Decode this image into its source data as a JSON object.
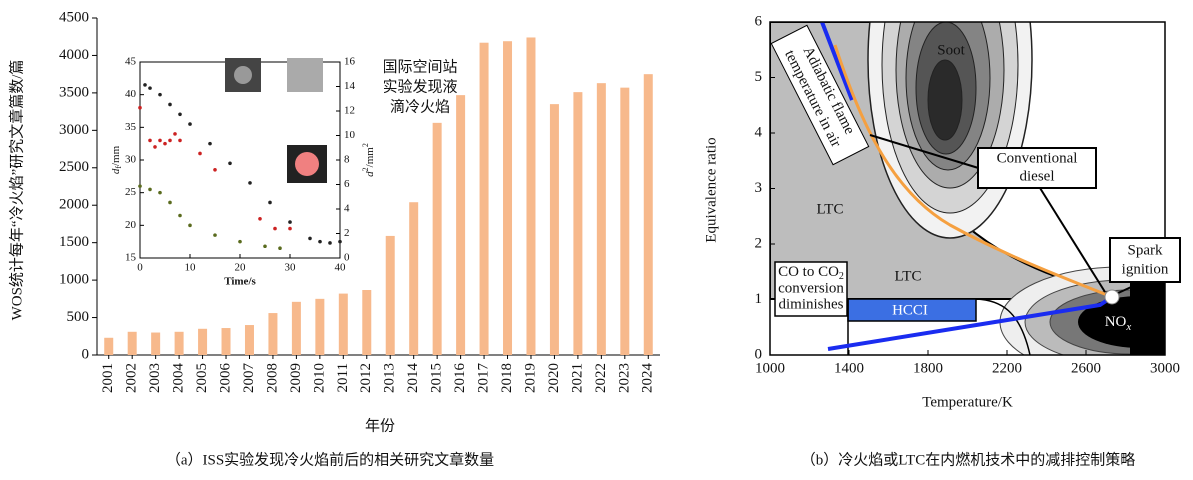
{
  "chart_data": [
    {
      "type": "bar",
      "ylabel": "WOS统计每年“冷火焰”研究文章篇数/篇",
      "xlabel": "年份",
      "caption": "（a）ISS实验发现冷火焰前后的相关研究文章数量",
      "annotation_lines": [
        "国际空间站",
        "实验发现液",
        "滴冷火焰"
      ],
      "categories": [
        "2001",
        "2002",
        "2003",
        "2004",
        "2005",
        "2006",
        "2007",
        "2008",
        "2009",
        "2010",
        "2011",
        "2012",
        "2013",
        "2014",
        "2015",
        "2016",
        "2017",
        "2018",
        "2019",
        "2020",
        "2021",
        "2022",
        "2023",
        "2024"
      ],
      "values": [
        230,
        310,
        300,
        310,
        350,
        360,
        400,
        560,
        710,
        750,
        820,
        1000,
        1590,
        2040,
        3100,
        3470,
        4170,
        4190,
        4240,
        3350,
        3510,
        3630,
        3570,
        3750
      ],
      "color": "#f7b98c",
      "ylim": [
        0,
        4500
      ],
      "yticks": [
        0,
        500,
        1000,
        1500,
        2000,
        2500,
        3000,
        3500,
        4000,
        4500
      ]
    },
    {
      "type": "scatter",
      "xlabel": "Time/s",
      "ylabel_parts": [
        "d",
        "f",
        "/mm"
      ],
      "y2label_parts": [
        "d",
        "2",
        "/mm",
        "2"
      ],
      "xlim": [
        0,
        40
      ],
      "xticks": [
        0,
        10,
        20,
        30,
        40
      ],
      "ylim": [
        15,
        45
      ],
      "yticks": [
        15,
        20,
        25,
        30,
        35,
        40,
        45
      ],
      "y2lim": [
        0,
        16
      ],
      "y2ticks": [
        0,
        2,
        4,
        6,
        8,
        10,
        12,
        14,
        16
      ],
      "series": [
        {
          "color": "#222222",
          "x": [
            1,
            2,
            4,
            6,
            8,
            10,
            14,
            18,
            22,
            26,
            30,
            34,
            36,
            38,
            40
          ],
          "values": [
            41.5,
            41,
            40,
            38.5,
            37,
            35.5,
            32.5,
            29.5,
            26.5,
            23.5,
            20.5,
            18,
            17.5,
            17.3,
            17.5
          ]
        },
        {
          "color": "#cc2222",
          "x": [
            0,
            2,
            3,
            4,
            5,
            6,
            7,
            8,
            12,
            15,
            24,
            27,
            30
          ],
          "values": [
            38,
            33,
            32,
            33,
            32.5,
            33,
            34,
            33,
            31,
            28.5,
            21,
            19.5,
            19.5
          ]
        },
        {
          "color": "#5a6b1e",
          "x": [
            0,
            2,
            4,
            6,
            8,
            10,
            15,
            20,
            25,
            28
          ],
          "values": [
            26,
            25.5,
            25,
            23.5,
            21.5,
            20,
            18.5,
            17.5,
            16.8,
            16.5
          ]
        }
      ]
    },
    {
      "type": "contour",
      "xlabel": "Temperature/K",
      "ylabel": "Equivalence ratio",
      "caption": "（b）冷火焰或LTC在内燃机技术中的减排控制策略",
      "xlim": [
        1000,
        3000
      ],
      "xticks": [
        1000,
        1400,
        1800,
        2200,
        2600,
        3000
      ],
      "ylim": [
        0,
        6
      ],
      "yticks": [
        0,
        1,
        2,
        3,
        4,
        5,
        6
      ],
      "soot": "Soot",
      "ltc": "LTC",
      "hcci": "HCCI",
      "nox": "NO",
      "nox_sub": "x",
      "co_lines": [
        "CO to CO",
        "conversion",
        "diminishes"
      ],
      "co_sub": "2",
      "diesel_lines": [
        "Conventional",
        "diesel"
      ],
      "spark_lines": [
        "Spark",
        "ignition"
      ],
      "flame_lines": [
        "Adiabatic flame",
        "temperature in air"
      ]
    }
  ]
}
